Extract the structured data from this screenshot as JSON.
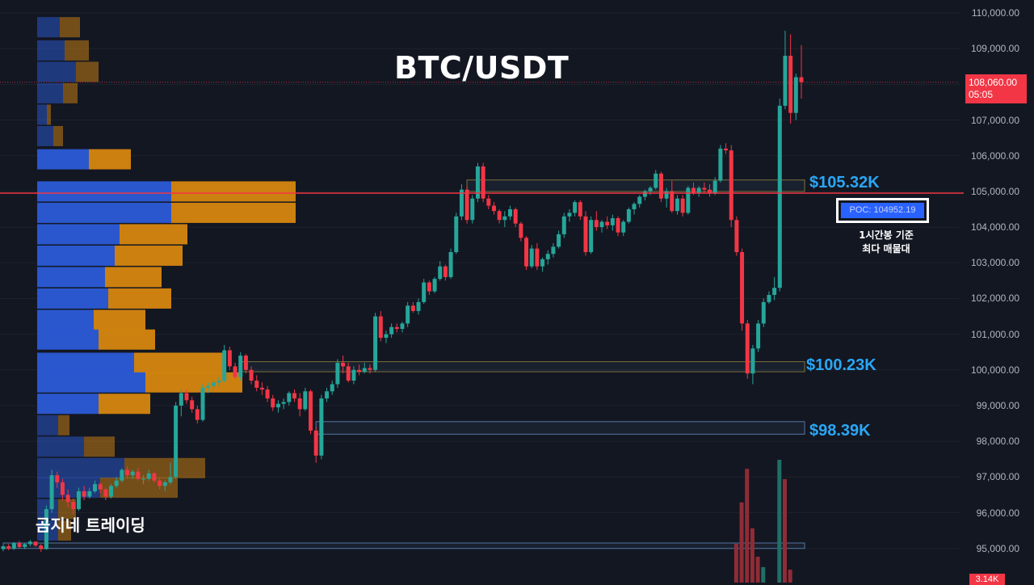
{
  "title": "BTC/USDT",
  "brand": "곰지네 트레이딩",
  "colors": {
    "background": "#131722",
    "up": "#26a69a",
    "down": "#f23645",
    "vp_up": "#2b5bd7",
    "vp_down": "#d6860f",
    "level": "#2aa7f5",
    "poc_line": "#f23645"
  },
  "price_axis": {
    "ticks": [
      "110,000.00",
      "109,000.00",
      "108,000.00",
      "107,000.00",
      "106,000.00",
      "105,000.00",
      "104,000.00",
      "103,000.00",
      "102,000.00",
      "101,000.00",
      "100,000.00",
      "99,000.00",
      "98,000.00",
      "97,000.00",
      "96,000.00",
      "95,000.00"
    ],
    "last_price": "108,060.00",
    "countdown": "05:05",
    "volume_tag": "3.14K"
  },
  "levels": [
    {
      "label": "$105.32K",
      "price": 105320
    },
    {
      "label": "$100.23K",
      "price": 100230
    },
    {
      "label": "$98.39K",
      "price": 98390
    }
  ],
  "poc": {
    "label": "POC: 104952.19",
    "price": 104952.19,
    "note_line1": "1시간봉 기준",
    "note_line2": "최다 매물대"
  },
  "chart_data": {
    "type": "candlestick",
    "symbol": "BTC/USDT",
    "timeframe_note": "1시간봉",
    "y_axis_range": [
      94600,
      110300
    ],
    "last_price": 108060,
    "poc_price": 104952.19,
    "volume_profile": [
      {
        "price": 109600,
        "buy": 28,
        "sell": 25
      },
      {
        "price": 108950,
        "buy": 34,
        "sell": 30
      },
      {
        "price": 108350,
        "buy": 48,
        "sell": 28
      },
      {
        "price": 107750,
        "buy": 32,
        "sell": 18
      },
      {
        "price": 107150,
        "buy": 12,
        "sell": 5
      },
      {
        "price": 106550,
        "buy": 20,
        "sell": 12
      },
      {
        "price": 105900,
        "buy": 64,
        "sell": 52
      },
      {
        "price": 105000,
        "buy": 166,
        "sell": 154
      },
      {
        "price": 104400,
        "buy": 166,
        "sell": 154
      },
      {
        "price": 103800,
        "buy": 102,
        "sell": 84
      },
      {
        "price": 103200,
        "buy": 96,
        "sell": 84
      },
      {
        "price": 102600,
        "buy": 84,
        "sell": 70
      },
      {
        "price": 102000,
        "buy": 88,
        "sell": 78
      },
      {
        "price": 101400,
        "buy": 70,
        "sell": 64
      },
      {
        "price": 100850,
        "buy": 76,
        "sell": 70
      },
      {
        "price": 100200,
        "buy": 120,
        "sell": 110
      },
      {
        "price": 99650,
        "buy": 134,
        "sell": 120
      },
      {
        "price": 99050,
        "buy": 76,
        "sell": 64
      },
      {
        "price": 98450,
        "buy": 26,
        "sell": 14
      },
      {
        "price": 97850,
        "buy": 58,
        "sell": 38
      },
      {
        "price": 97250,
        "buy": 108,
        "sell": 100
      },
      {
        "price": 96700,
        "buy": 78,
        "sell": 96
      },
      {
        "price": 96100,
        "buy": 26,
        "sell": 22
      },
      {
        "price": 95500,
        "buy": 26,
        "sell": 16
      }
    ],
    "candles": [
      [
        94980,
        95080,
        94920,
        95060
      ],
      [
        95060,
        95120,
        94950,
        94990
      ],
      [
        94990,
        95180,
        94960,
        95150
      ],
      [
        95150,
        95210,
        95000,
        95040
      ],
      [
        95040,
        95150,
        94980,
        95120
      ],
      [
        95120,
        95240,
        95060,
        95190
      ],
      [
        95190,
        95200,
        95040,
        95080
      ],
      [
        95080,
        95120,
        94900,
        94980
      ],
      [
        94980,
        96200,
        94960,
        96100
      ],
      [
        96100,
        97200,
        96000,
        97050
      ],
      [
        97050,
        97150,
        96700,
        96850
      ],
      [
        96850,
        96950,
        96350,
        96500
      ],
      [
        96500,
        96650,
        96150,
        96300
      ],
      [
        96300,
        96400,
        95950,
        96100
      ],
      [
        96100,
        96700,
        96050,
        96600
      ],
      [
        96600,
        96750,
        96350,
        96450
      ],
      [
        96450,
        96700,
        96400,
        96600
      ],
      [
        96600,
        96900,
        96550,
        96800
      ],
      [
        96800,
        96850,
        96550,
        96650
      ],
      [
        96650,
        96700,
        96350,
        96450
      ],
      [
        96450,
        96800,
        96400,
        96750
      ],
      [
        96750,
        97000,
        96700,
        96900
      ],
      [
        96900,
        97250,
        96850,
        97200
      ],
      [
        97200,
        97300,
        96950,
        97050
      ],
      [
        97050,
        97200,
        96950,
        97150
      ],
      [
        97150,
        97250,
        96900,
        96950
      ],
      [
        96950,
        97050,
        96800,
        96950
      ],
      [
        96950,
        97200,
        96900,
        97100
      ],
      [
        97100,
        97150,
        96850,
        96900
      ],
      [
        96900,
        97000,
        96650,
        96750
      ],
      [
        96750,
        96900,
        96600,
        96850
      ],
      [
        96850,
        97400,
        96800,
        97000
      ],
      [
        97000,
        99100,
        96950,
        99000
      ],
      [
        99000,
        99450,
        98700,
        99350
      ],
      [
        99350,
        99450,
        99050,
        99150
      ],
      [
        99150,
        99250,
        98800,
        98900
      ],
      [
        98900,
        99000,
        98500,
        98600
      ],
      [
        98600,
        99600,
        98550,
        99500
      ],
      [
        99500,
        99650,
        99350,
        99550
      ],
      [
        99550,
        99700,
        99450,
        99650
      ],
      [
        99650,
        99800,
        99550,
        99700
      ],
      [
        99700,
        100700,
        99650,
        100550
      ],
      [
        100550,
        100650,
        100000,
        100100
      ],
      [
        100100,
        100200,
        99750,
        99800
      ],
      [
        99800,
        100500,
        99700,
        100400
      ],
      [
        100400,
        100450,
        99900,
        100000
      ],
      [
        100000,
        100100,
        99600,
        99700
      ],
      [
        99700,
        99850,
        99400,
        99500
      ],
      [
        99500,
        99650,
        99300,
        99450
      ],
      [
        99450,
        99550,
        99100,
        99200
      ],
      [
        99200,
        99300,
        98850,
        98950
      ],
      [
        98950,
        99150,
        98800,
        99050
      ],
      [
        99050,
        99200,
        98900,
        99100
      ],
      [
        99100,
        99400,
        99000,
        99350
      ],
      [
        99350,
        99450,
        99100,
        99200
      ],
      [
        99200,
        99350,
        98700,
        98900
      ],
      [
        98900,
        99500,
        98850,
        99400
      ],
      [
        99400,
        99450,
        98200,
        98300
      ],
      [
        98300,
        98400,
        97400,
        97600
      ],
      [
        97600,
        99300,
        97500,
        99200
      ],
      [
        99200,
        99500,
        99100,
        99400
      ],
      [
        99400,
        99700,
        99300,
        99600
      ],
      [
        99600,
        100300,
        99500,
        100200
      ],
      [
        100200,
        100400,
        99900,
        100100
      ],
      [
        100100,
        100200,
        99650,
        99700
      ],
      [
        99700,
        100100,
        99600,
        100000
      ],
      [
        100000,
        100150,
        99850,
        99950
      ],
      [
        99950,
        100200,
        99900,
        100050
      ],
      [
        100050,
        100150,
        99900,
        100000
      ],
      [
        100000,
        101600,
        99950,
        101500
      ],
      [
        101500,
        101650,
        100800,
        100900
      ],
      [
        100900,
        101100,
        100750,
        101000
      ],
      [
        101000,
        101300,
        100900,
        101200
      ],
      [
        101200,
        101300,
        101050,
        101150
      ],
      [
        101150,
        101350,
        101050,
        101300
      ],
      [
        101300,
        101900,
        101200,
        101800
      ],
      [
        101800,
        101900,
        101600,
        101650
      ],
      [
        101650,
        102000,
        101550,
        101900
      ],
      [
        101900,
        102550,
        101850,
        102450
      ],
      [
        102450,
        102500,
        102100,
        102200
      ],
      [
        102200,
        102600,
        102150,
        102550
      ],
      [
        102550,
        103050,
        102500,
        102900
      ],
      [
        102900,
        102950,
        102500,
        102600
      ],
      [
        102600,
        103400,
        102550,
        103300
      ],
      [
        103300,
        104400,
        103250,
        104300
      ],
      [
        104300,
        105200,
        104200,
        105050
      ],
      [
        105050,
        105150,
        104100,
        104200
      ],
      [
        104200,
        104900,
        104100,
        104800
      ],
      [
        104800,
        105800,
        104700,
        105700
      ],
      [
        105700,
        105800,
        104700,
        104800
      ],
      [
        104800,
        104900,
        104500,
        104600
      ],
      [
        104600,
        104700,
        104350,
        104450
      ],
      [
        104450,
        104500,
        104100,
        104200
      ],
      [
        104200,
        104450,
        104000,
        104300
      ],
      [
        104300,
        104600,
        104200,
        104500
      ],
      [
        104500,
        104550,
        104000,
        104100
      ],
      [
        104100,
        104150,
        103600,
        103700
      ],
      [
        103700,
        103750,
        102800,
        102900
      ],
      [
        102900,
        103500,
        102850,
        103400
      ],
      [
        103400,
        103550,
        102800,
        102900
      ],
      [
        102900,
        103150,
        102750,
        103100
      ],
      [
        103100,
        103350,
        102950,
        103250
      ],
      [
        103250,
        103550,
        103150,
        103450
      ],
      [
        103450,
        103900,
        103400,
        103800
      ],
      [
        103800,
        104400,
        103700,
        104300
      ],
      [
        104300,
        104500,
        104150,
        104400
      ],
      [
        104400,
        104750,
        104300,
        104700
      ],
      [
        104700,
        104750,
        104200,
        104300
      ],
      [
        104300,
        104450,
        103200,
        103300
      ],
      [
        103300,
        104300,
        103250,
        104200
      ],
      [
        104200,
        104450,
        103900,
        104000
      ],
      [
        104000,
        104200,
        103850,
        104150
      ],
      [
        104150,
        104300,
        103950,
        104050
      ],
      [
        104050,
        104350,
        103900,
        104250
      ],
      [
        104250,
        104300,
        103750,
        103850
      ],
      [
        103850,
        104200,
        103750,
        104150
      ],
      [
        104150,
        104550,
        104100,
        104500
      ],
      [
        104500,
        104700,
        104350,
        104650
      ],
      [
        104650,
        104900,
        104550,
        104850
      ],
      [
        104850,
        105050,
        104750,
        105000
      ],
      [
        105000,
        105150,
        104900,
        105100
      ],
      [
        105100,
        105600,
        105050,
        105500
      ],
      [
        105500,
        105550,
        104700,
        104800
      ],
      [
        104800,
        105100,
        104550,
        105000
      ],
      [
        105000,
        105300,
        104400,
        104450
      ],
      [
        104450,
        104900,
        104350,
        104800
      ],
      [
        104800,
        104900,
        104300,
        104400
      ],
      [
        104400,
        105150,
        104350,
        105100
      ],
      [
        105100,
        105250,
        104900,
        104950
      ],
      [
        104950,
        105150,
        104850,
        105100
      ],
      [
        105100,
        105250,
        104950,
        105050
      ],
      [
        105050,
        105200,
        104850,
        104950
      ],
      [
        104950,
        105400,
        104900,
        105300
      ],
      [
        105300,
        106300,
        105250,
        106200
      ],
      [
        106200,
        106350,
        106050,
        106150
      ],
      [
        106150,
        106300,
        104000,
        104200
      ],
      [
        104200,
        104300,
        103200,
        103300
      ],
      [
        103300,
        103400,
        101100,
        101300
      ],
      [
        101300,
        101400,
        99750,
        99900
      ],
      [
        99900,
        100700,
        99600,
        100600
      ],
      [
        100600,
        101400,
        100500,
        101300
      ],
      [
        101300,
        102000,
        101200,
        101900
      ],
      [
        101900,
        102200,
        101850,
        102100
      ],
      [
        102100,
        102600,
        101950,
        102300
      ],
      [
        102300,
        107600,
        102200,
        107400
      ],
      [
        107400,
        109500,
        107300,
        108800
      ],
      [
        108800,
        109400,
        106900,
        107200
      ],
      [
        107200,
        108300,
        107000,
        108200
      ],
      [
        108200,
        109100,
        107600,
        108060
      ]
    ],
    "volume_bars": [
      {
        "index": 136,
        "value": 0.3,
        "dir": "down"
      },
      {
        "index": 137,
        "value": 0.62,
        "dir": "down"
      },
      {
        "index": 138,
        "value": 0.88,
        "dir": "down"
      },
      {
        "index": 139,
        "value": 0.42,
        "dir": "down"
      },
      {
        "index": 140,
        "value": 0.2,
        "dir": "down"
      },
      {
        "index": 141,
        "value": 0.12,
        "dir": "up"
      },
      {
        "index": 144,
        "value": 0.95,
        "dir": "up"
      },
      {
        "index": 145,
        "value": 0.8,
        "dir": "down"
      },
      {
        "index": 146,
        "value": 0.1,
        "dir": "down"
      }
    ],
    "zones": [
      {
        "top": 105320,
        "bottom": 105000,
        "color": "#e0b040",
        "x_from_index": 86
      },
      {
        "top": 100230,
        "bottom": 99950,
        "color": "#e0b040",
        "x_from_index": 44
      },
      {
        "top": 98550,
        "bottom": 98200,
        "color": "#ffffff",
        "x_from_index": 58
      },
      {
        "top": 95150,
        "bottom": 95000,
        "color": "#ffffff",
        "x_from_index": 0
      }
    ]
  }
}
